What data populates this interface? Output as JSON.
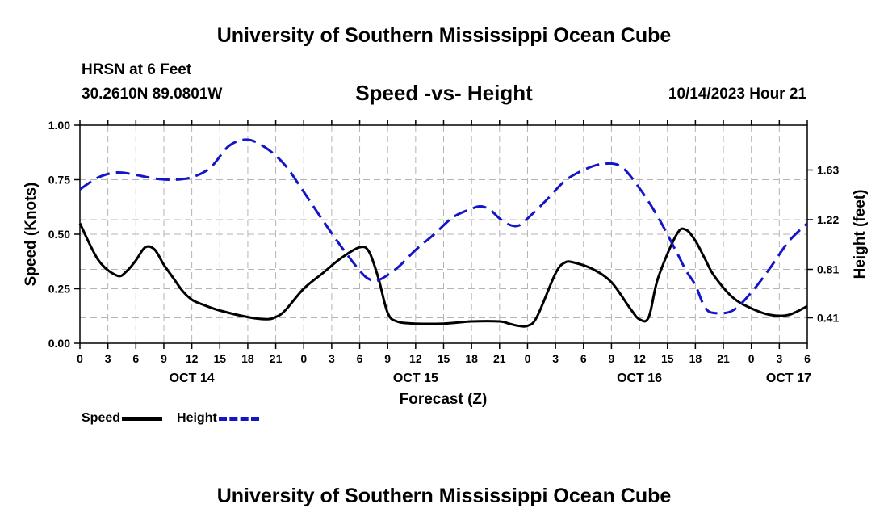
{
  "header": {
    "title": "University of Southern Mississippi Ocean Cube",
    "station": "HRSN at 6 Feet",
    "coords": "30.2610N  89.0801W",
    "subtitle": "Speed -vs- Height",
    "datetime": "10/14/2023 Hour 21",
    "footer_title": "University of Southern Mississippi Ocean Cube"
  },
  "legend": {
    "speed_label": "Speed",
    "height_label": "Height"
  },
  "colors": {
    "speed": "#000000",
    "height": "#1414c8",
    "grid": "#b4b4b4"
  },
  "chart_data": {
    "type": "line",
    "title": "Speed -vs- Height",
    "xlabel": "Forecast (Z)",
    "ylabel": "Speed (Knots)",
    "y2label": "Height (feet)",
    "x_unit": "hours since 00Z Oct 14",
    "xlim": [
      0,
      78
    ],
    "ylim": [
      0,
      1
    ],
    "y2lim": [
      0.2,
      2.0
    ],
    "x_ticks": [
      0,
      3,
      6,
      9,
      12,
      15,
      18,
      21,
      24,
      27,
      30,
      33,
      36,
      39,
      42,
      45,
      48,
      51,
      54,
      57,
      60,
      63,
      66,
      69,
      72,
      75,
      78
    ],
    "x_tick_labels": [
      "0",
      "3",
      "6",
      "9",
      "12",
      "15",
      "18",
      "21",
      "0",
      "3",
      "6",
      "9",
      "12",
      "15",
      "18",
      "21",
      "0",
      "3",
      "6",
      "9",
      "12",
      "15",
      "18",
      "21",
      "0",
      "3",
      "6"
    ],
    "date_labels": [
      {
        "x": 12,
        "label": "OCT 14"
      },
      {
        "x": 36,
        "label": "OCT 15"
      },
      {
        "x": 60,
        "label": "OCT 16"
      },
      {
        "x": 76,
        "label": "OCT 17"
      }
    ],
    "y_ticks": [
      0.0,
      0.25,
      0.5,
      0.75,
      1.0
    ],
    "y_tick_labels": [
      "0.00",
      "0.25",
      "0.50",
      "0.75",
      "1.00"
    ],
    "y2_ticks": [
      0.41,
      0.81,
      1.22,
      1.63
    ],
    "y2_tick_labels": [
      "0.41",
      "0.81",
      "1.22",
      "1.63"
    ],
    "series": [
      {
        "name": "Speed",
        "axis": "left",
        "style": "solid",
        "x": [
          0,
          2,
          4,
          5,
          6,
          7,
          8,
          9,
          10,
          11,
          12,
          13,
          15,
          18,
          20,
          21,
          22,
          24,
          26,
          28,
          30,
          31,
          32,
          33,
          34,
          36,
          39,
          42,
          45,
          46,
          47,
          48,
          49,
          51,
          52,
          53,
          55,
          57,
          59,
          60,
          61,
          62,
          64,
          65,
          66,
          67,
          68,
          70,
          72,
          74,
          76,
          78
        ],
        "values": [
          0.55,
          0.38,
          0.31,
          0.33,
          0.38,
          0.44,
          0.43,
          0.36,
          0.3,
          0.24,
          0.2,
          0.18,
          0.15,
          0.12,
          0.11,
          0.12,
          0.15,
          0.25,
          0.32,
          0.39,
          0.44,
          0.42,
          0.3,
          0.14,
          0.1,
          0.09,
          0.09,
          0.1,
          0.1,
          0.09,
          0.08,
          0.08,
          0.12,
          0.32,
          0.37,
          0.37,
          0.34,
          0.28,
          0.16,
          0.11,
          0.12,
          0.3,
          0.5,
          0.52,
          0.47,
          0.39,
          0.31,
          0.21,
          0.16,
          0.13,
          0.13,
          0.17
        ]
      },
      {
        "name": "Height",
        "axis": "right",
        "style": "dashed",
        "x": [
          0,
          2,
          4,
          6,
          8,
          10,
          12,
          14,
          16,
          18,
          20,
          22,
          24,
          26,
          28,
          30,
          31,
          32,
          34,
          36,
          38,
          40,
          42,
          43,
          44,
          45,
          46,
          47,
          48,
          50,
          52,
          54,
          56,
          58,
          60,
          62,
          64,
          65,
          66,
          67,
          68,
          70,
          72,
          74,
          76,
          78
        ],
        "values": [
          1.47,
          1.57,
          1.61,
          1.59,
          1.56,
          1.55,
          1.57,
          1.65,
          1.83,
          1.88,
          1.81,
          1.67,
          1.45,
          1.22,
          1.0,
          0.8,
          0.73,
          0.72,
          0.82,
          0.97,
          1.1,
          1.24,
          1.31,
          1.33,
          1.3,
          1.23,
          1.18,
          1.17,
          1.23,
          1.38,
          1.54,
          1.63,
          1.68,
          1.66,
          1.48,
          1.24,
          0.95,
          0.8,
          0.68,
          0.5,
          0.45,
          0.47,
          0.62,
          0.82,
          1.04,
          1.19
        ]
      }
    ]
  }
}
